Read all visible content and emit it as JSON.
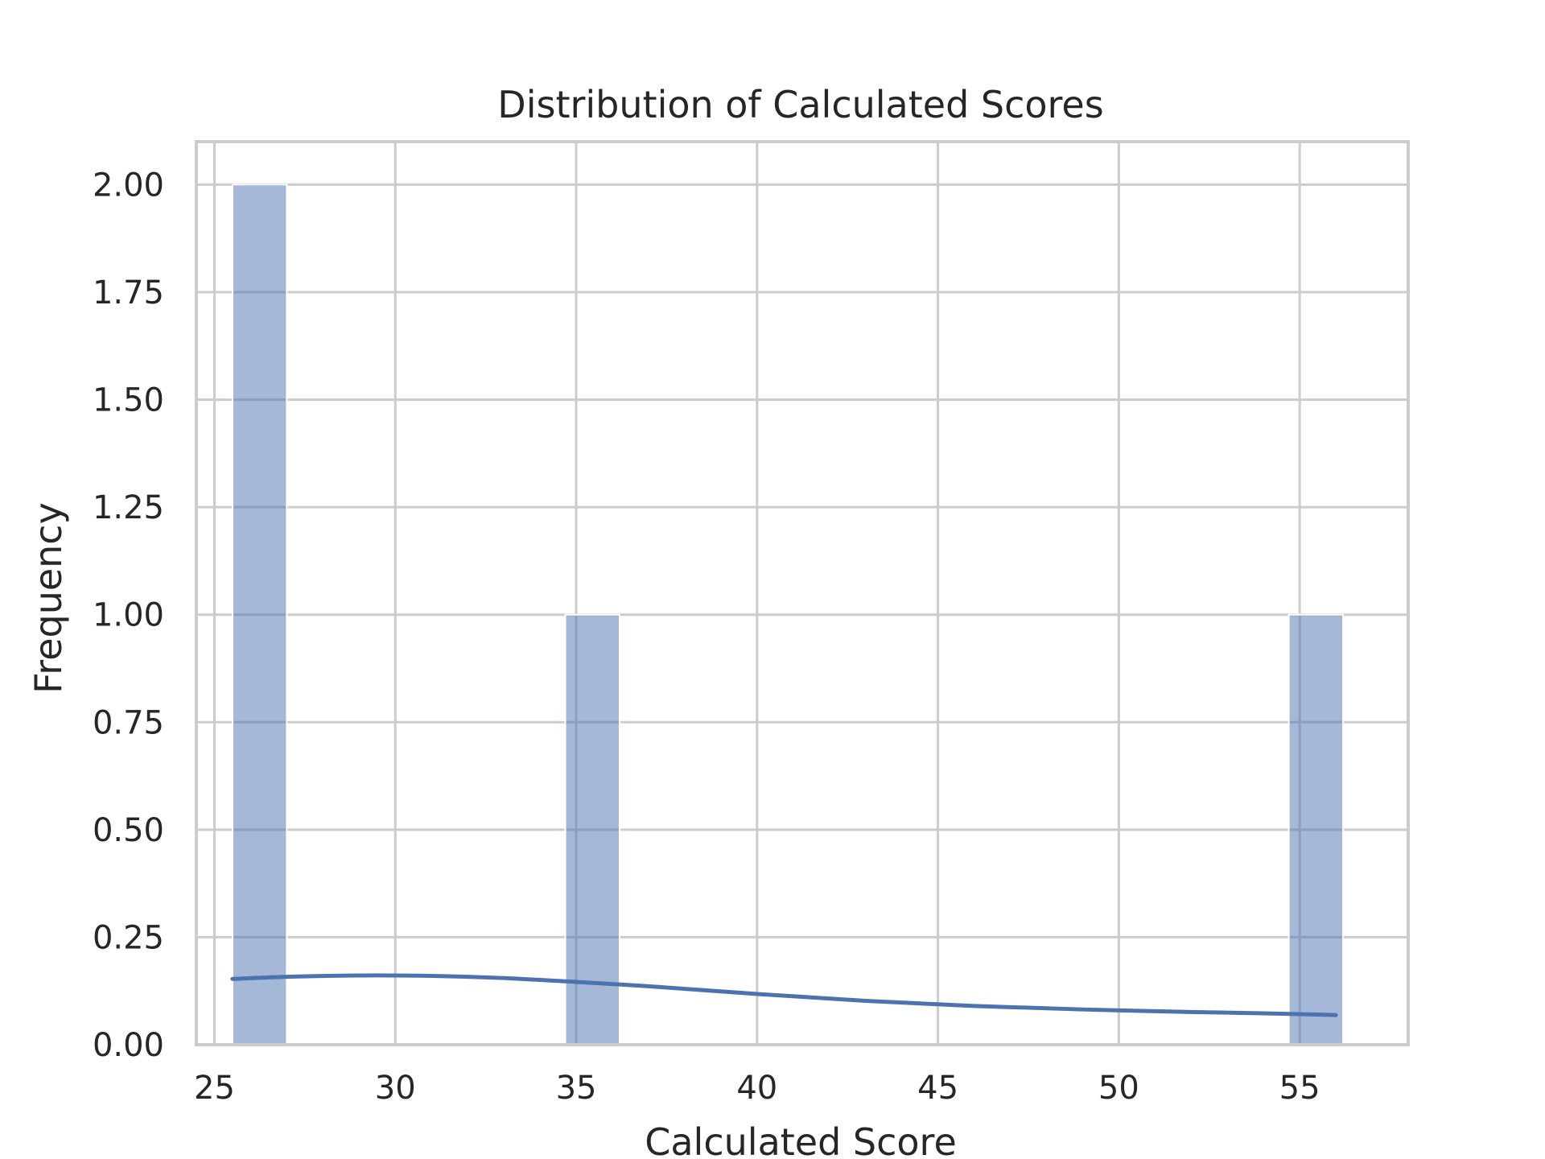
{
  "chart_data": {
    "type": "bar",
    "title": "Distribution of Calculated Scores",
    "xlabel": "Calculated Score",
    "ylabel": "Frequency",
    "xlim": [
      24.5,
      58
    ],
    "ylim": [
      0,
      2.1
    ],
    "x_ticks": [
      25,
      30,
      35,
      40,
      45,
      50,
      55
    ],
    "y_ticks": [
      0,
      0.25,
      0.5,
      0.75,
      1.0,
      1.25,
      1.5,
      1.75,
      2.0
    ],
    "x_tick_labels": [
      "25",
      "30",
      "35",
      "40",
      "45",
      "50",
      "55"
    ],
    "y_tick_labels": [
      "0.00",
      "0.25",
      "0.50",
      "0.75",
      "1.00",
      "1.25",
      "1.50",
      "1.75",
      "2.00"
    ],
    "grid": true,
    "bars": [
      {
        "x_start": 25.5,
        "x_end": 27.0,
        "count": 2
      },
      {
        "x_start": 34.7,
        "x_end": 36.2,
        "count": 1
      },
      {
        "x_start": 54.7,
        "x_end": 56.2,
        "count": 1
      }
    ],
    "kde_curve": {
      "x": [
        25.5,
        27,
        29,
        31,
        33,
        35,
        37,
        40,
        43,
        46,
        49,
        52,
        54,
        56
      ],
      "y": [
        0.153,
        0.158,
        0.161,
        0.16,
        0.155,
        0.146,
        0.136,
        0.118,
        0.102,
        0.09,
        0.082,
        0.076,
        0.073,
        0.069
      ]
    },
    "colors": {
      "bar_fill": "#4c72b0",
      "bar_opacity": 0.5,
      "kde_line": "#4c72b0",
      "grid": "#cccccc",
      "axes_edge": "#cccccc",
      "text": "#262626",
      "background": "#ffffff"
    }
  }
}
